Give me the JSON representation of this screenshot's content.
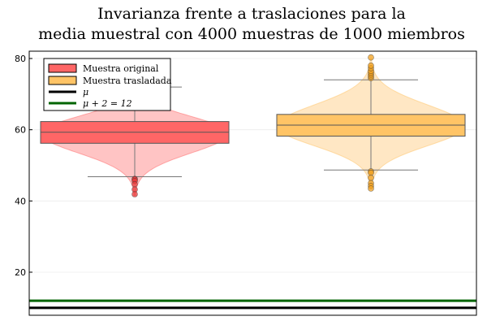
{
  "chart_data": {
    "type": "violin_box",
    "title_lines": [
      "Invarianza frente a traslaciones para la",
      "media muestral con 4000 muestras de 1000 miembros"
    ],
    "xlabel": "",
    "ylabel": "",
    "ylim": [
      8,
      83
    ],
    "yticks": [
      20,
      40,
      60,
      80
    ],
    "grid": true,
    "legend_position": "top-left",
    "series": [
      {
        "name": "Muestra original",
        "color": "#ff6666",
        "violin_color": "#ffc4c4",
        "outlier_color": "#e83a3a",
        "violin_min": 41.5,
        "violin_max": 74,
        "violin_center": 59,
        "box": {
          "q1": 56.2,
          "median": 59.3,
          "q3": 62.3,
          "whisker_low": 46.8,
          "whisker_high": 72
        },
        "outliers": [
          46.2,
          46.0,
          45.6,
          44.7,
          43.2,
          41.9
        ]
      },
      {
        "name": "Muestra trasladada",
        "color": "#ffc466",
        "violin_color": "#ffe7c4",
        "outlier_color": "#f0a020",
        "violin_min": 43.5,
        "violin_max": 80,
        "violin_center": 61,
        "box": {
          "q1": 58.2,
          "median": 61.3,
          "q3": 64.3,
          "whisker_low": 48.7,
          "whisker_high": 74
        },
        "outliers": [
          48.3,
          47.9,
          46.5,
          45.0,
          44.2,
          43.5,
          74.5,
          75.0,
          75.5,
          76.0,
          76.5,
          77.3,
          78.0,
          80.3
        ]
      }
    ],
    "hlines": [
      {
        "name": "μ",
        "y": 10,
        "color": "#000000"
      },
      {
        "name": "μ + 2 = 12",
        "y": 12,
        "color": "#006400"
      }
    ]
  }
}
